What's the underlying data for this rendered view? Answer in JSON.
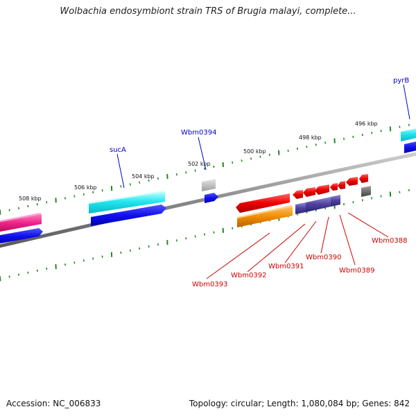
{
  "title": "Wolbachia endosymbiont strain TRS of Brugia malayi, complete...",
  "footer": {
    "accession": "Accession: NC_006833",
    "summary": "Topology: circular; Length: 1,080,084 bp; Genes: 842"
  },
  "colors": {
    "backbone": "#808080",
    "tick": "#1f8a1f",
    "forward_label": "#0000cc",
    "reverse_label": "#cc0000"
  },
  "scale_labels": [
    "508 kbp",
    "506 kbp",
    "504 kbp",
    "502 kbp",
    "500 kbp",
    "498 kbp",
    "496 kbp"
  ],
  "forward_gene_labels": [
    "sucA",
    "Wbm0394",
    "pyrB"
  ],
  "reverse_gene_labels": [
    "Wbm0393",
    "Wbm0392",
    "Wbm0391",
    "Wbm0390",
    "Wbm0389",
    "Wbm0388"
  ]
}
